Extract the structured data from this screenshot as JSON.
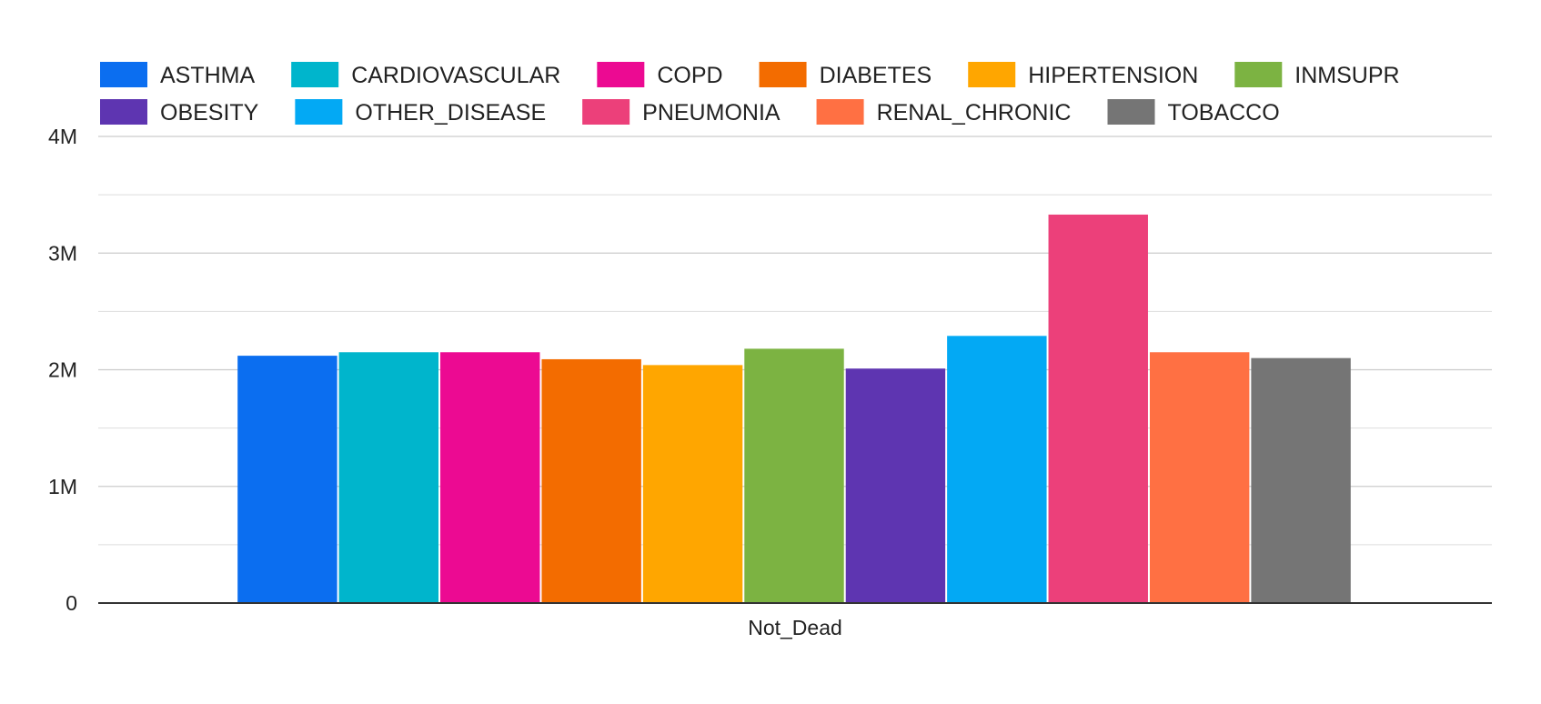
{
  "chart_data": {
    "type": "bar",
    "categories": [
      "Not_Dead"
    ],
    "series": [
      {
        "name": "ASTHMA",
        "color": "#0B6EF0",
        "values": [
          2120000
        ]
      },
      {
        "name": "CARDIOVASCULAR",
        "color": "#00B5CC",
        "values": [
          2150000
        ]
      },
      {
        "name": "COPD",
        "color": "#EC0A92",
        "values": [
          2150000
        ]
      },
      {
        "name": "DIABETES",
        "color": "#F36C00",
        "values": [
          2090000
        ]
      },
      {
        "name": "HIPERTENSION",
        "color": "#FFA600",
        "values": [
          2040000
        ]
      },
      {
        "name": "INMSUPR",
        "color": "#7CB342",
        "values": [
          2180000
        ]
      },
      {
        "name": "OBESITY",
        "color": "#5E35B1",
        "values": [
          2010000
        ]
      },
      {
        "name": "OTHER_DISEASE",
        "color": "#03A9F4",
        "values": [
          2290000
        ]
      },
      {
        "name": "PNEUMONIA",
        "color": "#EC407A",
        "values": [
          3330000
        ]
      },
      {
        "name": "RENAL_CHRONIC",
        "color": "#FF7043",
        "values": [
          2150000
        ]
      },
      {
        "name": "TOBACCO",
        "color": "#757575",
        "values": [
          2100000
        ]
      }
    ],
    "ylim": [
      0,
      4000000
    ],
    "yticks": [
      {
        "value": 0,
        "label": "0"
      },
      {
        "value": 1000000,
        "label": "1M"
      },
      {
        "value": 2000000,
        "label": "2M"
      },
      {
        "value": 3000000,
        "label": "3M"
      },
      {
        "value": 4000000,
        "label": "4M"
      }
    ],
    "minor_gridlines": true,
    "legend_position": "top",
    "title": "",
    "xlabel": "",
    "ylabel": ""
  }
}
